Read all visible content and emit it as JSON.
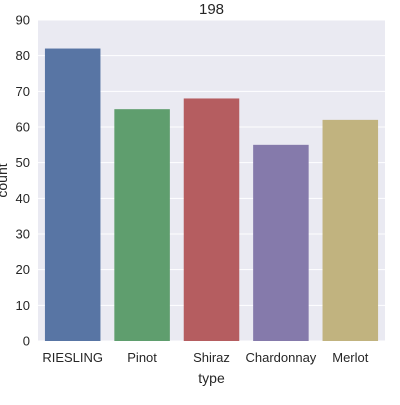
{
  "chart_data": {
    "type": "bar",
    "title": "198",
    "xlabel": "type",
    "ylabel": "count",
    "categories": [
      "RIESLING",
      "Pinot",
      "Shiraz",
      "Chardonnay",
      "Merlot"
    ],
    "values": [
      82,
      65,
      68,
      55,
      62
    ],
    "colors": [
      "#5875a4",
      "#5f9e6e",
      "#b55d60",
      "#857aab",
      "#c1b37f"
    ],
    "ylim": [
      0,
      90
    ],
    "yticks": [
      0,
      10,
      20,
      30,
      40,
      50,
      60,
      70,
      80,
      90
    ],
    "grid": true,
    "plot_background": "#eaeaf2",
    "grid_color": "#ffffff"
  }
}
